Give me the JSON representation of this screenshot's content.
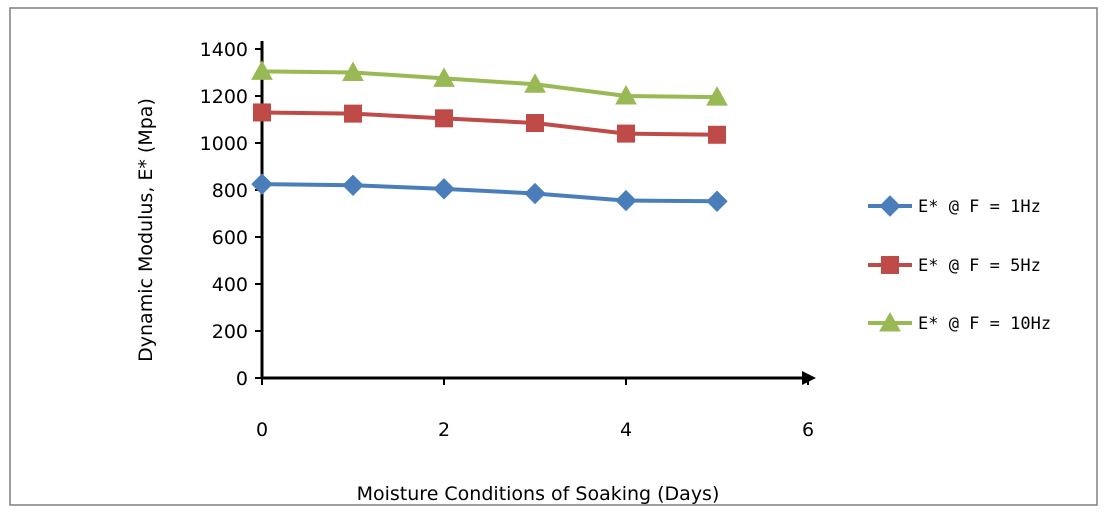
{
  "chart_data": {
    "type": "line",
    "title": "",
    "xlabel": "Moisture Conditions of Soaking  (Days)",
    "ylabel": "Dynamic Modulus,  E* (Mpa)",
    "xlim": [
      0,
      6
    ],
    "ylim": [
      0,
      1400
    ],
    "xticks": [
      0,
      2,
      4,
      6
    ],
    "yticks": [
      0,
      200,
      400,
      600,
      800,
      1000,
      1200,
      1400
    ],
    "grid": false,
    "legend_position": "right",
    "x": [
      0,
      1,
      2,
      3,
      4,
      5
    ],
    "series": [
      {
        "name": "E* @ F = 1Hz",
        "values": [
          825,
          820,
          805,
          785,
          755,
          752
        ],
        "color": "#4a7ebb",
        "marker": "diamond"
      },
      {
        "name": "E* @ F = 5Hz",
        "values": [
          1130,
          1125,
          1105,
          1085,
          1040,
          1035
        ],
        "color": "#be4b48",
        "marker": "square"
      },
      {
        "name": "E* @ F = 10Hz",
        "values": [
          1305,
          1300,
          1275,
          1250,
          1200,
          1195
        ],
        "color": "#98b954",
        "marker": "triangle"
      }
    ]
  }
}
